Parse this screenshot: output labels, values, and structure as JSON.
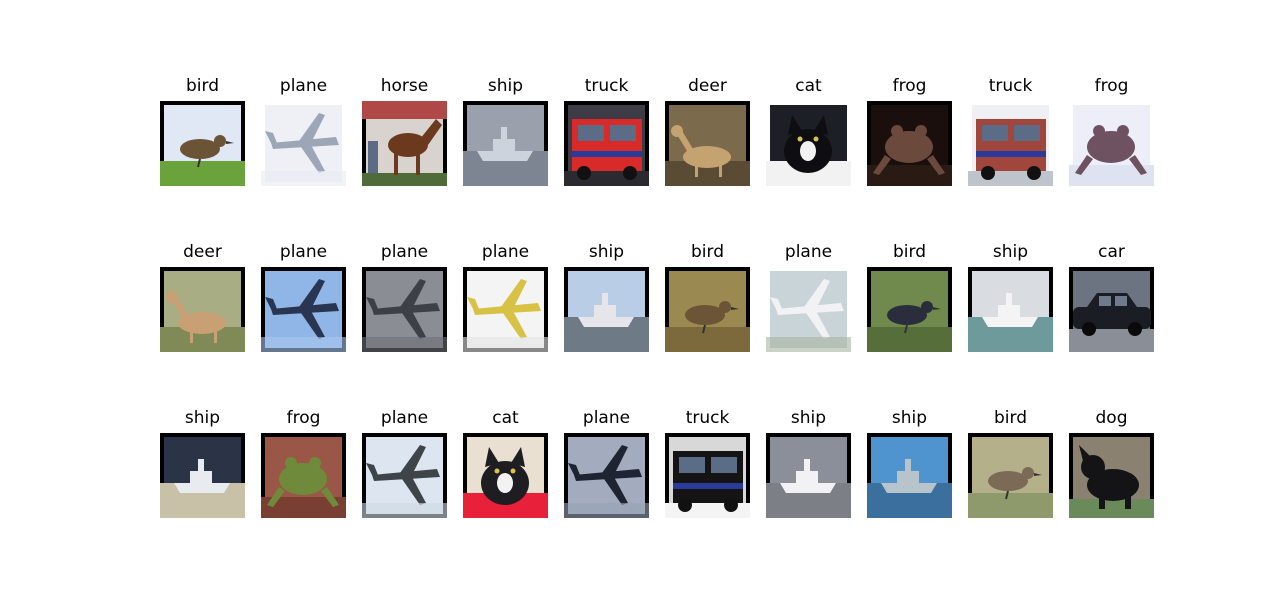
{
  "figure": {
    "rows": [
      [
        {
          "label": "bird",
          "icon": "bird-photo",
          "bg": "#dfe8f4",
          "fg": "#6b5335",
          "ground": "#6aa23c",
          "pad": "#000000"
        },
        {
          "label": "plane",
          "icon": "plane-photo",
          "bg": "#eef0f6",
          "fg": "#9da6b6",
          "ground": "#e8ebf2",
          "pad": "#ffffff"
        },
        {
          "label": "horse",
          "icon": "horse-photo",
          "bg": "#d9d3d0",
          "fg": "#6b3a1e",
          "ground": "#4f6b3a",
          "pad": "#000000"
        },
        {
          "label": "ship",
          "icon": "ship-photo",
          "bg": "#9aa1ad",
          "fg": "#cdd3dc",
          "ground": "#7c8591",
          "pad": "#000000"
        },
        {
          "label": "truck",
          "icon": "truck-photo",
          "bg": "#3d3b45",
          "fg": "#d92a2a",
          "ground": "#2a2a30",
          "pad": "#000000"
        },
        {
          "label": "deer",
          "icon": "deer-photo",
          "bg": "#7b6a4c",
          "fg": "#c4a371",
          "ground": "#5a4c34",
          "pad": "#000000"
        },
        {
          "label": "cat",
          "icon": "cat-photo",
          "bg": "#1c1f26",
          "fg": "#0e0e12",
          "ground": "#f2f2f2",
          "pad": "#ffffff"
        },
        {
          "label": "frog",
          "icon": "frog-photo",
          "bg": "#1a0f0c",
          "fg": "#6b4a3d",
          "ground": "#2a1a14",
          "pad": "#000000"
        },
        {
          "label": "truck",
          "icon": "truck-photo",
          "bg": "#eef0f4",
          "fg": "#a0463d",
          "ground": "#bfc4cc",
          "pad": "#ffffff"
        },
        {
          "label": "frog",
          "icon": "frog-photo",
          "bg": "#eceef8",
          "fg": "#6e5262",
          "ground": "#dfe2f0",
          "pad": "#ffffff"
        }
      ],
      [
        {
          "label": "deer",
          "icon": "deer-photo",
          "bg": "#a8ad84",
          "fg": "#c9a073",
          "ground": "#7f8a56",
          "pad": "#000000"
        },
        {
          "label": "plane",
          "icon": "plane-photo",
          "bg": "#8fb6e6",
          "fg": "#2a3552",
          "ground": "#a9c7ee",
          "pad": "#000000"
        },
        {
          "label": "plane",
          "icon": "plane-photo",
          "bg": "#8a8d93",
          "fg": "#3d4046",
          "ground": "#6c6f75",
          "pad": "#000000"
        },
        {
          "label": "plane",
          "icon": "plane-photo",
          "bg": "#f4f4f4",
          "fg": "#d8c245",
          "ground": "#e2e2e2",
          "pad": "#000000"
        },
        {
          "label": "ship",
          "icon": "ship-photo",
          "bg": "#b9cde6",
          "fg": "#e6e6ea",
          "ground": "#6e7a86",
          "pad": "#000000"
        },
        {
          "label": "bird",
          "icon": "bird-photo",
          "bg": "#9a8a52",
          "fg": "#6b5536",
          "ground": "#7c6a3c",
          "pad": "#000000"
        },
        {
          "label": "plane",
          "icon": "plane-photo",
          "bg": "#c9d4d8",
          "fg": "#f2f2f4",
          "ground": "#a9b4a2",
          "pad": "#ffffff"
        },
        {
          "label": "bird",
          "icon": "bird-photo",
          "bg": "#6f8a4c",
          "fg": "#2a2e3c",
          "ground": "#566e3a",
          "pad": "#000000"
        },
        {
          "label": "ship",
          "icon": "ship-photo",
          "bg": "#d9dde2",
          "fg": "#f4f4f4",
          "ground": "#6f9a9c",
          "pad": "#000000"
        },
        {
          "label": "car",
          "icon": "car-photo",
          "bg": "#6c7482",
          "fg": "#1a1d24",
          "ground": "#8a8e96",
          "pad": "#000000"
        }
      ],
      [
        {
          "label": "ship",
          "icon": "ship-photo",
          "bg": "#2a3446",
          "fg": "#e8ecf0",
          "ground": "#c9c0a8",
          "pad": "#000000"
        },
        {
          "label": "frog",
          "icon": "frog-photo",
          "bg": "#9a5646",
          "fg": "#6f8a3a",
          "ground": "#7a3f33",
          "pad": "#000000"
        },
        {
          "label": "plane",
          "icon": "plane-photo",
          "bg": "#dde6f0",
          "fg": "#3e4448",
          "ground": "#cfd9e4",
          "pad": "#000000"
        },
        {
          "label": "cat",
          "icon": "cat-photo",
          "bg": "#e9e0d2",
          "fg": "#1e1e22",
          "ground": "#e8203a",
          "pad": "#000000"
        },
        {
          "label": "plane",
          "icon": "plane-photo",
          "bg": "#a3acbe",
          "fg": "#1f2433",
          "ground": "#98a2b6",
          "pad": "#000000"
        },
        {
          "label": "truck",
          "icon": "truck-photo",
          "bg": "#d8d8d8",
          "fg": "#141414",
          "ground": "#f4f4f4",
          "pad": "#000000"
        },
        {
          "label": "ship",
          "icon": "ship-photo",
          "bg": "#8a8f9a",
          "fg": "#f2f2f4",
          "ground": "#7c7f86",
          "pad": "#000000"
        },
        {
          "label": "ship",
          "icon": "ship-photo",
          "bg": "#4f93cf",
          "fg": "#b8c4cc",
          "ground": "#3a6f9e",
          "pad": "#000000"
        },
        {
          "label": "bird",
          "icon": "bird-photo",
          "bg": "#b3b08a",
          "fg": "#7a6a56",
          "ground": "#8e9a6c",
          "pad": "#000000"
        },
        {
          "label": "dog",
          "icon": "dog-photo",
          "bg": "#8a8170",
          "fg": "#141416",
          "ground": "#6b8a5a",
          "pad": "#000000"
        }
      ]
    ]
  }
}
